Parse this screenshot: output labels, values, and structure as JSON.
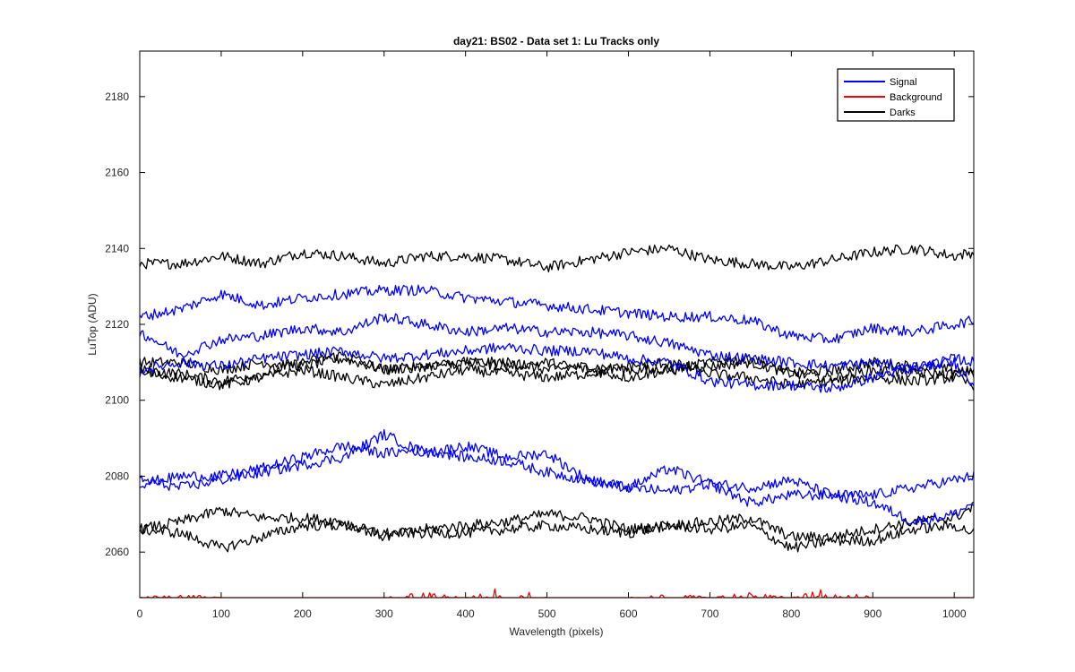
{
  "chart_data": {
    "type": "line",
    "title": "day21: BS02 - Data set 1: Lu Tracks only",
    "xlabel": "Wavelength (pixels)",
    "ylabel": "LuTop (ADU)",
    "xlim": [
      0,
      1024
    ],
    "ylim": [
      2048,
      2192
    ],
    "xticks": [
      0,
      100,
      200,
      300,
      400,
      500,
      600,
      700,
      800,
      900,
      1000
    ],
    "xtick_labels": [
      "0",
      "100",
      "200",
      "300",
      "400",
      "500",
      "600",
      "700",
      "800",
      "900",
      "1000"
    ],
    "yticks": [
      2060,
      2080,
      2100,
      2120,
      2140,
      2160,
      2180
    ],
    "ytick_labels": [
      "2060",
      "2080",
      "2100",
      "2120",
      "2140",
      "2160",
      "2180"
    ],
    "grid": false,
    "legend_position": "top-right",
    "legend": [
      {
        "label": "Signal",
        "color": "#0000ff"
      },
      {
        "label": "Background",
        "color": "#ff0000"
      },
      {
        "label": "Darks",
        "color": "#000000"
      }
    ],
    "series": [
      {
        "name": "Signal",
        "group": "Signal",
        "color": "#0000ff",
        "x": [
          0,
          50,
          100,
          150,
          200,
          250,
          300,
          350,
          400,
          450,
          500,
          550,
          600,
          650,
          700,
          750,
          800,
          850,
          900,
          950,
          1000,
          1024
        ],
        "y": [
          2122,
          2124,
          2128,
          2125,
          2127,
          2128,
          2129,
          2129,
          2127,
          2126,
          2125,
          2124,
          2123,
          2122,
          2122,
          2121,
          2117,
          2116,
          2119,
          2118,
          2120,
          2121
        ]
      },
      {
        "name": "Signal",
        "group": "Signal",
        "color": "#0000ff",
        "x": [
          0,
          50,
          100,
          150,
          200,
          250,
          300,
          350,
          400,
          450,
          500,
          550,
          600,
          650,
          700,
          750,
          800,
          850,
          900,
          950,
          1000,
          1024
        ],
        "y": [
          2118,
          2112,
          2116,
          2117,
          2119,
          2118,
          2122,
          2120,
          2118,
          2119,
          2118,
          2118,
          2117,
          2115,
          2112,
          2111,
          2110,
          2109,
          2110,
          2108,
          2111,
          2110
        ]
      },
      {
        "name": "Signal",
        "group": "Signal",
        "color": "#0000ff",
        "x": [
          0,
          50,
          100,
          150,
          200,
          250,
          300,
          350,
          400,
          450,
          500,
          550,
          600,
          650,
          700,
          750,
          800,
          850,
          900,
          950,
          1000,
          1024
        ],
        "y": [
          2108,
          2110,
          2109,
          2111,
          2112,
          2113,
          2111,
          2112,
          2113,
          2114,
          2113,
          2113,
          2111,
          2110,
          2105,
          2104,
          2104,
          2103,
          2106,
          2109,
          2110,
          2104
        ]
      },
      {
        "name": "Signal",
        "group": "Signal",
        "color": "#0000ff",
        "x": [
          0,
          50,
          100,
          150,
          200,
          250,
          300,
          350,
          400,
          450,
          500,
          550,
          600,
          650,
          700,
          750,
          800,
          850,
          900,
          950,
          1000,
          1024
        ],
        "y": [
          2078,
          2080,
          2080,
          2082,
          2085,
          2088,
          2086,
          2087,
          2085,
          2084,
          2081,
          2079,
          2077,
          2076,
          2078,
          2077,
          2079,
          2075,
          2075,
          2077,
          2079,
          2080
        ]
      },
      {
        "name": "Signal",
        "group": "Signal",
        "color": "#0000ff",
        "x": [
          0,
          50,
          100,
          150,
          200,
          250,
          300,
          350,
          400,
          450,
          500,
          550,
          600,
          650,
          700,
          750,
          800,
          850,
          900,
          950,
          1000,
          1024
        ],
        "y": [
          2079,
          2077,
          2079,
          2081,
          2083,
          2085,
          2091,
          2086,
          2088,
          2085,
          2086,
          2079,
          2077,
          2082,
          2078,
          2073,
          2075,
          2075,
          2073,
          2068,
          2070,
          2073
        ]
      },
      {
        "name": "Background",
        "group": "Background",
        "color": "#ff0000",
        "x": [
          0,
          50,
          100,
          150,
          200,
          250,
          300,
          350,
          400,
          450,
          500,
          550,
          600,
          650,
          700,
          750,
          800,
          850,
          900,
          950,
          1000,
          1024
        ],
        "y": [
          2048,
          2049,
          2048,
          2048,
          2048,
          2048,
          2048,
          2049,
          2048,
          2050,
          2048,
          2048,
          2048,
          2049,
          2048,
          2049,
          2048,
          2050,
          2048,
          2048,
          2048,
          2048
        ]
      },
      {
        "name": "Darks",
        "group": "Darks",
        "color": "#000000",
        "x": [
          0,
          50,
          100,
          150,
          200,
          250,
          300,
          350,
          400,
          450,
          500,
          550,
          600,
          650,
          700,
          750,
          800,
          850,
          900,
          950,
          1000,
          1024
        ],
        "y": [
          2136,
          2136,
          2138,
          2136,
          2139,
          2138,
          2136,
          2138,
          2138,
          2137,
          2135,
          2137,
          2139,
          2140,
          2137,
          2136,
          2135,
          2137,
          2139,
          2140,
          2138,
          2139
        ]
      },
      {
        "name": "Darks",
        "group": "Darks",
        "color": "#000000",
        "x": [
          0,
          50,
          100,
          150,
          200,
          250,
          300,
          350,
          400,
          450,
          500,
          550,
          600,
          650,
          700,
          750,
          800,
          850,
          900,
          950,
          1000,
          1024
        ],
        "y": [
          2110,
          2110,
          2108,
          2110,
          2109,
          2111,
          2108,
          2109,
          2110,
          2110,
          2108,
          2109,
          2108,
          2108,
          2109,
          2110,
          2107,
          2108,
          2110,
          2109,
          2108,
          2107
        ]
      },
      {
        "name": "Darks",
        "group": "Darks",
        "color": "#000000",
        "x": [
          0,
          50,
          100,
          150,
          200,
          250,
          300,
          350,
          400,
          450,
          500,
          550,
          600,
          650,
          700,
          750,
          800,
          850,
          900,
          950,
          1000,
          1024
        ],
        "y": [
          2108,
          2107,
          2105,
          2107,
          2110,
          2112,
          2108,
          2109,
          2110,
          2109,
          2110,
          2108,
          2106,
          2108,
          2110,
          2111,
          2107,
          2106,
          2108,
          2107,
          2107,
          2108
        ]
      },
      {
        "name": "Darks",
        "group": "Darks",
        "color": "#000000",
        "x": [
          0,
          50,
          100,
          150,
          200,
          250,
          300,
          350,
          400,
          450,
          500,
          550,
          600,
          650,
          700,
          750,
          800,
          850,
          900,
          950,
          1000,
          1024
        ],
        "y": [
          2107,
          2106,
          2104,
          2106,
          2108,
          2106,
          2104,
          2106,
          2108,
          2107,
          2106,
          2107,
          2109,
          2110,
          2107,
          2106,
          2104,
          2105,
          2106,
          2105,
          2106,
          2104
        ]
      },
      {
        "name": "Darks",
        "group": "Darks",
        "color": "#000000",
        "x": [
          0,
          50,
          100,
          150,
          200,
          250,
          300,
          350,
          400,
          450,
          500,
          550,
          600,
          650,
          700,
          750,
          800,
          850,
          900,
          950,
          1000,
          1024
        ],
        "y": [
          2066,
          2068,
          2071,
          2069,
          2069,
          2068,
          2064,
          2066,
          2067,
          2068,
          2070,
          2069,
          2066,
          2067,
          2068,
          2069,
          2064,
          2064,
          2066,
          2068,
          2069,
          2072
        ]
      },
      {
        "name": "Darks",
        "group": "Darks",
        "color": "#000000",
        "x": [
          0,
          50,
          100,
          150,
          200,
          250,
          300,
          350,
          400,
          450,
          500,
          550,
          600,
          650,
          700,
          750,
          800,
          850,
          900,
          950,
          1000,
          1024
        ],
        "y": [
          2066,
          2065,
          2061,
          2064,
          2067,
          2067,
          2065,
          2065,
          2065,
          2066,
          2067,
          2066,
          2065,
          2067,
          2066,
          2067,
          2061,
          2063,
          2063,
          2066,
          2067,
          2065
        ]
      }
    ]
  }
}
